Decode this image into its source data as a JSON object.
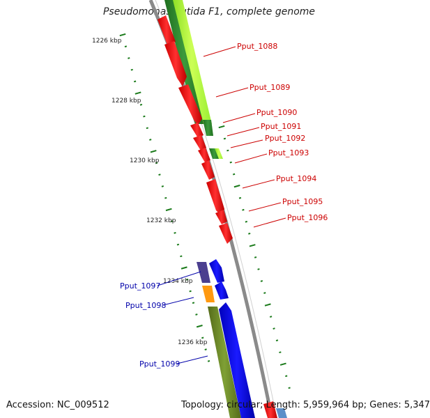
{
  "title": "Pseudomonas putida F1, complete genome",
  "accession": "Accession: NC_009512",
  "summary": "Topology: circular; Length: 5,959,964 bp; Genes: 5,347",
  "ticks": [
    {
      "label": "1226 kbp"
    },
    {
      "label": "1228 kbp"
    },
    {
      "label": "1230 kbp"
    },
    {
      "label": "1232 kbp"
    },
    {
      "label": "1234 kbp"
    },
    {
      "label": "1236 kbp"
    }
  ],
  "genes": [
    {
      "label": "Pput_1088",
      "strand": "forward",
      "color": "#cc0000"
    },
    {
      "label": "Pput_1089",
      "strand": "forward",
      "color": "#cc0000"
    },
    {
      "label": "Pput_1090",
      "strand": "forward",
      "color": "#cc0000"
    },
    {
      "label": "Pput_1091",
      "strand": "forward",
      "color": "#cc0000"
    },
    {
      "label": "Pput_1092",
      "strand": "forward",
      "color": "#cc0000"
    },
    {
      "label": "Pput_1093",
      "strand": "forward",
      "color": "#cc0000"
    },
    {
      "label": "Pput_1094",
      "strand": "forward",
      "color": "#cc0000"
    },
    {
      "label": "Pput_1095",
      "strand": "forward",
      "color": "#cc0000"
    },
    {
      "label": "Pput_1096",
      "strand": "forward",
      "color": "#cc0000"
    },
    {
      "label": "Pput_1097",
      "strand": "reverse",
      "color": "#0000aa"
    },
    {
      "label": "Pput_1098",
      "strand": "reverse",
      "color": "#0000aa"
    },
    {
      "label": "Pput_1099",
      "strand": "reverse",
      "color": "#0000aa"
    }
  ],
  "colors": {
    "forward_cds": "#ff0000",
    "reverse_cds": "#0000ff",
    "backbone": "#888888",
    "tick": "#1a7a1a",
    "cog_green_light": "#aaff33",
    "cog_green_dark": "#2e8b2e",
    "cog_olive": "#6b8e23",
    "cog_orange": "#ff9900",
    "cog_purple": "#483d8b"
  }
}
